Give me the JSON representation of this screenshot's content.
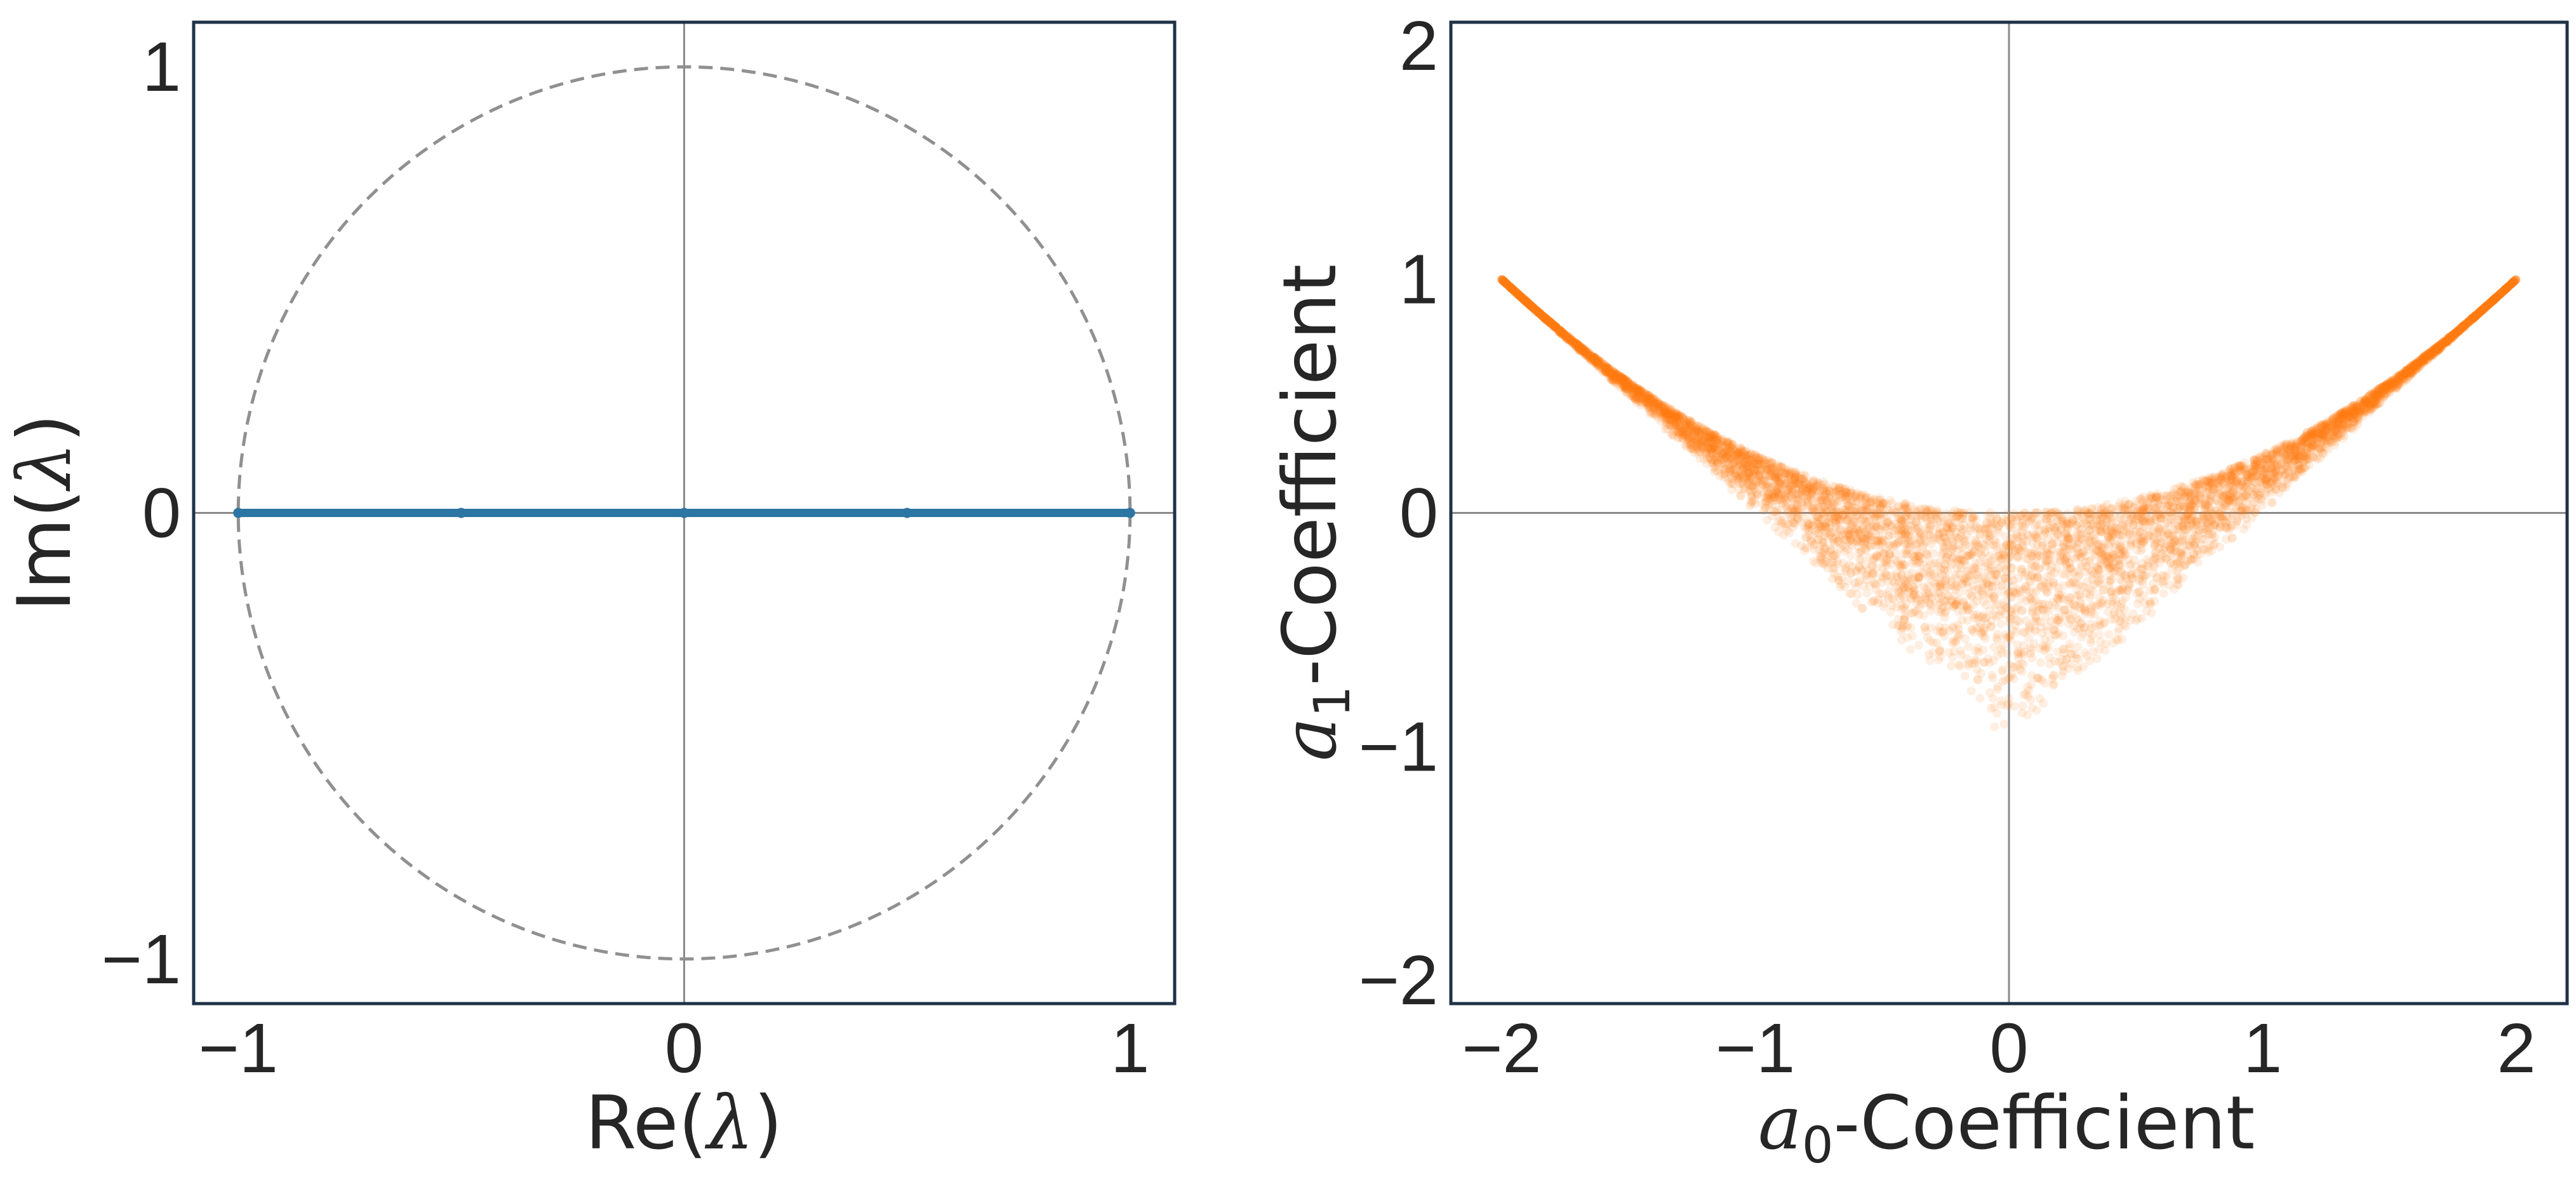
{
  "colors": {
    "frame": "#1f3247",
    "zero_lines": "#8a8a8a",
    "unit_circle": "#909090",
    "eigen_line": "#2d75a3",
    "points": "#ff7f0e"
  },
  "chart_data": [
    {
      "type": "line",
      "title": "",
      "xlabel": {
        "text": "Re(",
        "symbol": "λ",
        "close": ")"
      },
      "ylabel": {
        "text": "Im(",
        "symbol": "λ",
        "close": ")"
      },
      "xlim": [
        -1.1,
        1.1
      ],
      "ylim": [
        -1.1,
        1.1
      ],
      "xticks": [
        -1,
        0,
        1
      ],
      "yticks": [
        -1,
        0,
        1
      ],
      "xtick_labels": [
        "−1",
        "0",
        "1"
      ],
      "ytick_labels": [
        "−1",
        "0",
        "1"
      ],
      "grid": false,
      "reference_lines": {
        "x0": true,
        "y0": true
      },
      "unit_circle": {
        "radius": 1,
        "style": "dashed"
      },
      "series": [
        {
          "x": [
            -1.0,
            -0.5,
            0.0,
            0.5,
            1.0
          ],
          "y": [
            0,
            0,
            0,
            0,
            0
          ],
          "style": "thick line with markers"
        }
      ]
    },
    {
      "type": "scatter",
      "title": "",
      "xlabel": {
        "sym": "a",
        "sub": "0",
        "text": "-Coefficient"
      },
      "ylabel": {
        "sym": "a",
        "sub": "1",
        "text": "-Coefficient"
      },
      "xlim": [
        -2.2,
        2.2
      ],
      "ylim": [
        -2.1,
        2.1
      ],
      "xticks": [
        -2,
        -1,
        0,
        1,
        2
      ],
      "yticks": [
        -2,
        -1,
        0,
        1,
        2
      ],
      "xtick_labels": [
        "−2",
        "−1",
        "0",
        "1",
        "2"
      ],
      "ytick_labels": [
        "−2",
        "−1",
        "0",
        "1",
        "2"
      ],
      "grid": false,
      "reference_lines": {
        "x0": true,
        "y0": true
      },
      "region": {
        "upper_boundary": "a1 = a0^2 / 4",
        "lower_boundary": "a1 = |a0| - 1",
        "a0_range": [
          -2,
          2
        ],
        "vertices": [
          [
            -2,
            1
          ],
          [
            0,
            -1
          ],
          [
            2,
            1
          ]
        ]
      },
      "point_alpha": 0.12
    }
  ]
}
